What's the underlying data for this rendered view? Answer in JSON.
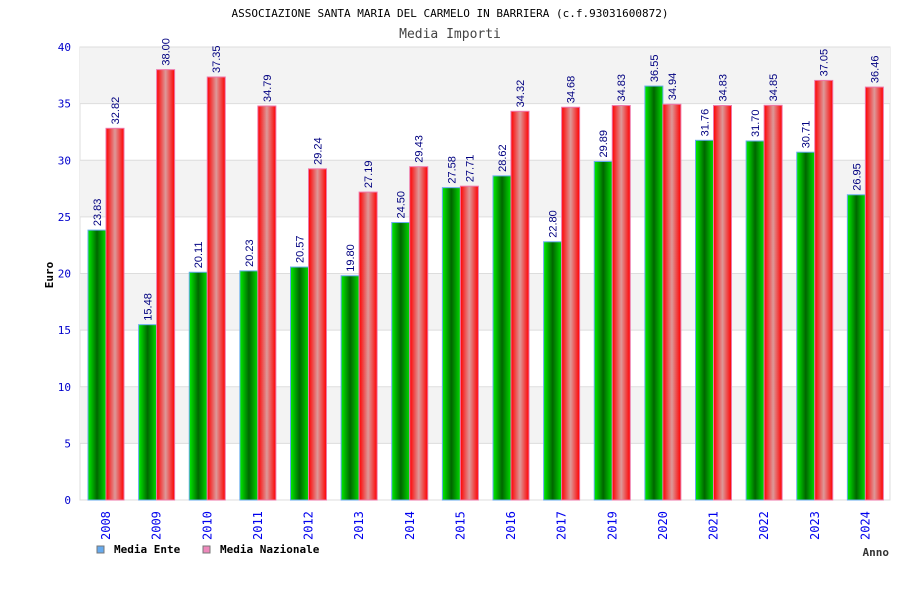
{
  "chart_data": {
    "type": "bar",
    "title": "ASSOCIAZIONE SANTA MARIA DEL CARMELO IN BARRIERA (c.f.93031600872)",
    "subtitle": "Media Importi",
    "xlabel": "Anno",
    "ylabel": "Euro",
    "ylim": [
      0,
      40
    ],
    "yticks": [
      0,
      5,
      10,
      15,
      20,
      25,
      30,
      35,
      40
    ],
    "grid": true,
    "legend_position": "bottom-left",
    "categories": [
      "2008",
      "2009",
      "2010",
      "2011",
      "2012",
      "2013",
      "2014",
      "2015",
      "2016",
      "2017",
      "2019",
      "2020",
      "2021",
      "2022",
      "2023",
      "2024"
    ],
    "series": [
      {
        "name": "Media Ente",
        "color": "#00cc00",
        "legend_color": "#66aaee",
        "values": [
          23.83,
          15.48,
          20.11,
          20.23,
          20.57,
          19.8,
          24.5,
          27.58,
          28.62,
          22.8,
          29.89,
          36.55,
          31.76,
          31.7,
          30.71,
          26.95
        ]
      },
      {
        "name": "Media Nazionale",
        "color": "#ff0000",
        "legend_color": "#ee88bb",
        "values": [
          32.82,
          38.0,
          37.35,
          34.79,
          29.24,
          27.19,
          29.43,
          27.71,
          34.32,
          34.68,
          34.83,
          34.94,
          34.83,
          34.85,
          37.05,
          36.46
        ]
      }
    ]
  }
}
